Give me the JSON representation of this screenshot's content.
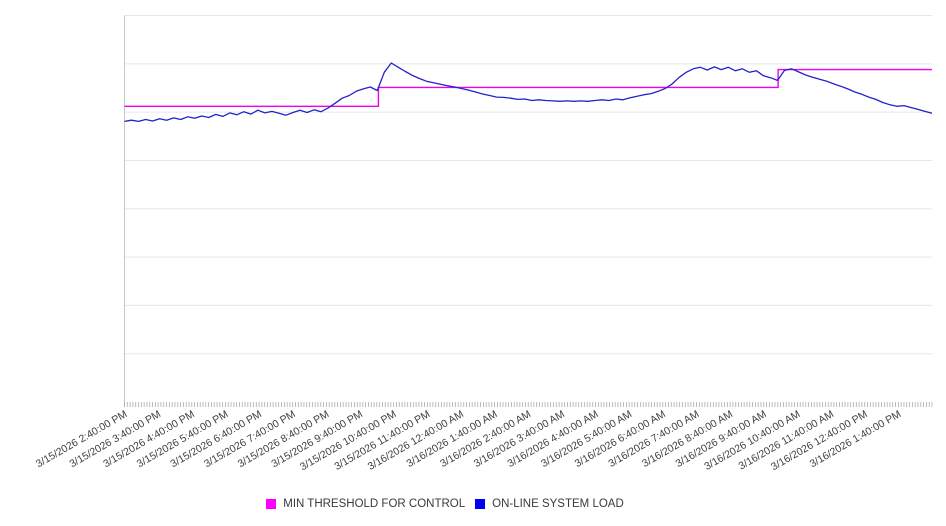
{
  "legend": {
    "items": [
      {
        "label": "MIN THRESHOLD FOR CONTROL",
        "color": "#ff00ff"
      },
      {
        "label": "ON-LINE SYSTEM LOAD",
        "color": "#0000ee"
      }
    ]
  },
  "chart_data": {
    "type": "line",
    "title": "",
    "xlabel": "",
    "ylabel": "",
    "legend_position": "bottom-center",
    "grid": true,
    "y_axis": {
      "labels_visible": false,
      "ylim_est": [
        0,
        100
      ],
      "gridline_divisions": 8
    },
    "x_axis": {
      "minor_ticks": "every 5 minutes",
      "major_labels": "every hour",
      "label_rotation_deg": -30
    },
    "x_tick_labels": [
      "3/15/2026 2:40:00 PM",
      "3/15/2026 3:40:00 PM",
      "3/15/2026 4:40:00 PM",
      "3/15/2026 5:40:00 PM",
      "3/15/2026 6:40:00 PM",
      "3/15/2026 7:40:00 PM",
      "3/15/2026 8:40:00 PM",
      "3/15/2026 9:40:00 PM",
      "3/15/2026 10:40:00 PM",
      "3/15/2026 11:40:00 PM",
      "3/16/2026 12:40:00 AM",
      "3/16/2026 1:40:00 AM",
      "3/16/2026 2:40:00 AM",
      "3/16/2026 3:40:00 AM",
      "3/16/2026 4:40:00 AM",
      "3/16/2026 5:40:00 AM",
      "3/16/2026 6:40:00 AM",
      "3/16/2026 7:40:00 AM",
      "3/16/2026 8:40:00 AM",
      "3/16/2026 9:40:00 AM",
      "3/16/2026 10:40:00 AM",
      "3/16/2026 11:40:00 AM",
      "3/16/2026 12:40:00 PM",
      "3/16/2026 1:40:00 PM"
    ],
    "series": [
      {
        "name": "MIN THRESHOLD FOR CONTROL",
        "type": "step",
        "color": "#ee00ee",
        "segments": [
          {
            "x_frac_from": 0.0,
            "x_frac_to": 0.3144,
            "value": 76.5
          },
          {
            "x_frac_from": 0.3144,
            "x_frac_to": 0.8094,
            "value": 81.4
          },
          {
            "x_frac_from": 0.8094,
            "x_frac_to": 1.0,
            "value": 86.0
          }
        ]
      },
      {
        "name": "ON-LINE SYSTEM LOAD",
        "type": "line",
        "color": "#2222cc",
        "values": [
          72.6,
          72.9,
          72.6,
          73.1,
          72.7,
          73.3,
          72.9,
          73.5,
          73.1,
          73.8,
          73.4,
          74.0,
          73.6,
          74.4,
          73.9,
          74.8,
          74.3,
          75.1,
          74.5,
          75.5,
          74.8,
          75.2,
          74.7,
          74.2,
          74.9,
          75.5,
          74.9,
          75.6,
          75.1,
          76.1,
          77.3,
          78.6,
          79.3,
          80.4,
          81.0,
          81.5,
          80.6,
          85.3,
          87.7,
          86.6,
          85.5,
          84.5,
          83.7,
          83.0,
          82.6,
          82.2,
          81.8,
          81.5,
          81.1,
          80.7,
          80.2,
          79.7,
          79.3,
          78.9,
          78.8,
          78.6,
          78.3,
          78.4,
          78.0,
          78.2,
          78.0,
          77.9,
          77.8,
          77.9,
          77.8,
          77.9,
          77.8,
          78.0,
          78.2,
          78.0,
          78.4,
          78.2,
          78.7,
          79.1,
          79.5,
          79.8,
          80.4,
          81.1,
          82.3,
          84.0,
          85.3,
          86.2,
          86.6,
          85.9,
          86.7,
          86.0,
          86.6,
          85.7,
          86.2,
          85.3,
          85.7,
          84.4,
          83.9,
          83.2,
          85.8,
          86.2,
          85.4,
          84.6,
          84.0,
          83.5,
          83.0,
          82.3,
          81.7,
          81.0,
          80.2,
          79.6,
          78.9,
          78.3,
          77.5,
          76.9,
          76.5,
          76.7,
          76.2,
          75.7,
          75.2,
          74.7
        ]
      }
    ],
    "style": {
      "gridline_color": "#e7e7e7",
      "axis_color": "#c8c8c8",
      "tick_color": "#ababab",
      "label_color": "#404040",
      "background": "#ffffff"
    }
  }
}
